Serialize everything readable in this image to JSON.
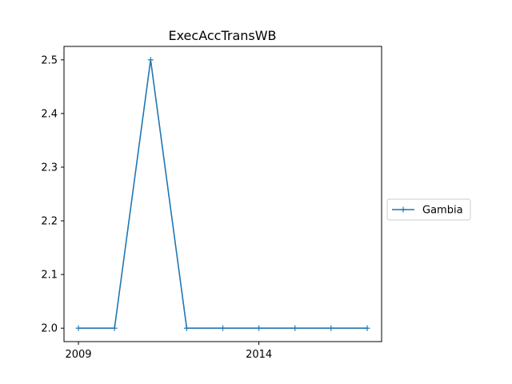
{
  "chart_data": {
    "type": "line",
    "title": "ExecAccTransWB",
    "xlabel": "",
    "ylabel": "",
    "x": [
      2009,
      2010,
      2011,
      2012,
      2013,
      2014,
      2015,
      2016,
      2017
    ],
    "series": [
      {
        "name": "Gambia",
        "values": [
          2.0,
          2.0,
          2.5,
          2.0,
          2.0,
          2.0,
          2.0,
          2.0,
          2.0
        ],
        "color": "#1f77b4",
        "marker": "+"
      }
    ],
    "xlim": [
      2008.6,
      2017.4
    ],
    "ylim": [
      1.975,
      2.525
    ],
    "xticks": [
      2009,
      2014
    ],
    "yticks": [
      2.0,
      2.1,
      2.2,
      2.3,
      2.4,
      2.5
    ],
    "ytick_labels": [
      "2.0",
      "2.1",
      "2.2",
      "2.3",
      "2.4",
      "2.5"
    ],
    "grid": false,
    "legend_position": "center-right-outside"
  }
}
